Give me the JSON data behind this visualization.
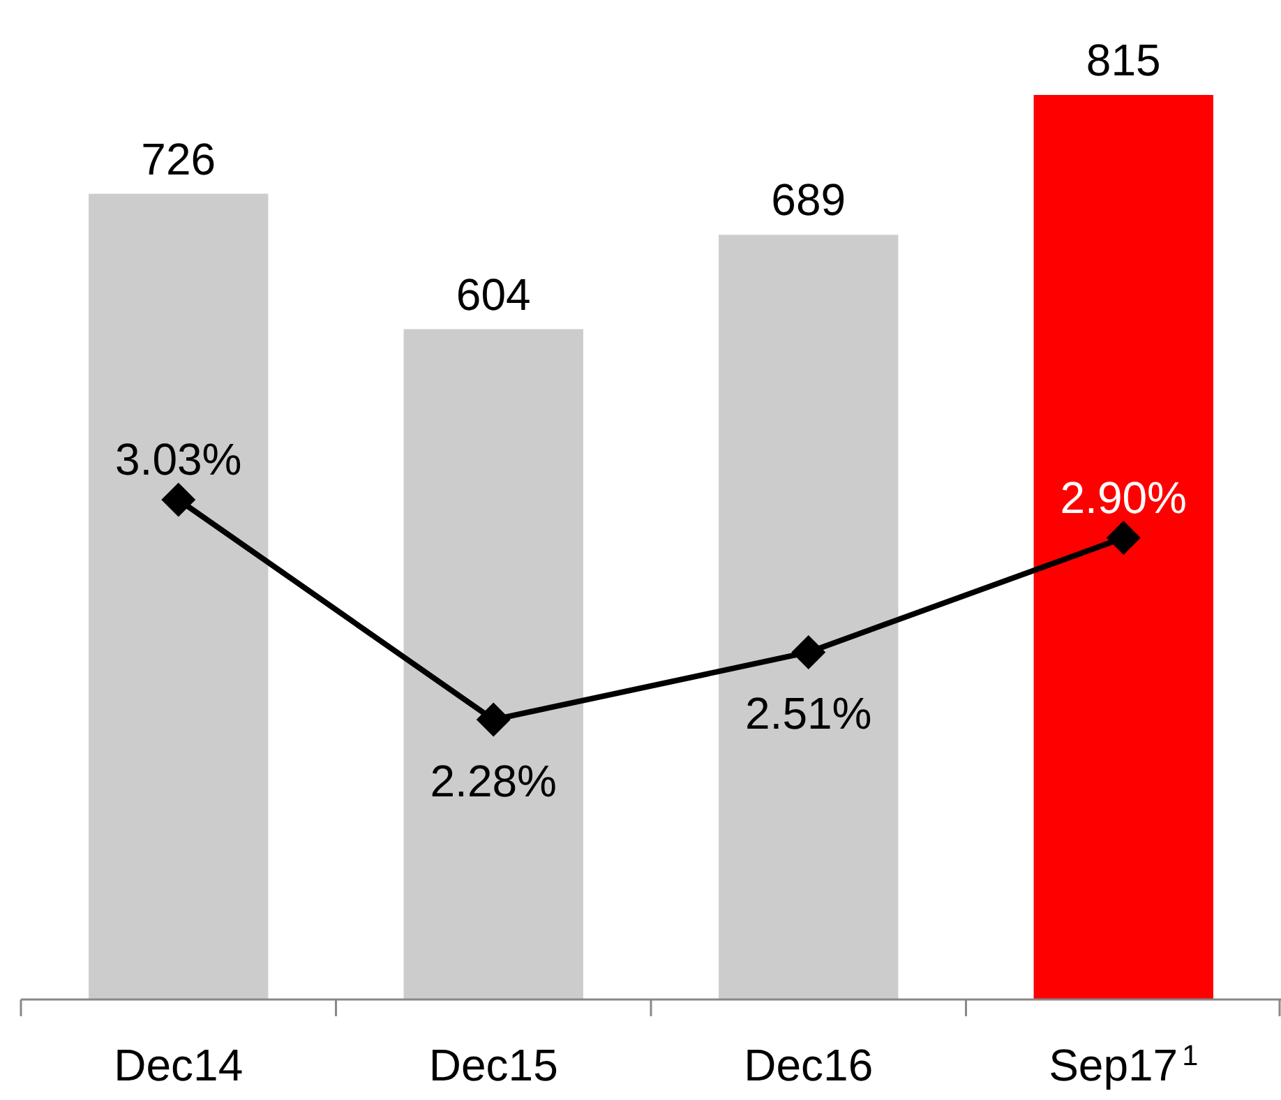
{
  "chart_data": {
    "type": "bar",
    "categories": [
      "Dec14",
      "Dec15",
      "Dec16",
      "Sep17$^{1}$"
    ],
    "tick_labels": "x",
    "data_labels": true,
    "series": [
      {
        "colors": [
          "#cccccc",
          "#cccccc",
          "#cccccc",
          "#ff0000"
        ],
        "values": [
          726,
          604,
          689,
          815
        ]
      },
      {
        "type": "line",
        "axis": "y2",
        "color": "#000000",
        "marker": "diamond",
        "values": [
          3.03,
          2.28,
          2.51,
          2.9
        ],
        "value_labels": [
          "3.03%",
          "2.28%",
          "2.51%",
          "2.90%"
        ]
      }
    ]
  }
}
